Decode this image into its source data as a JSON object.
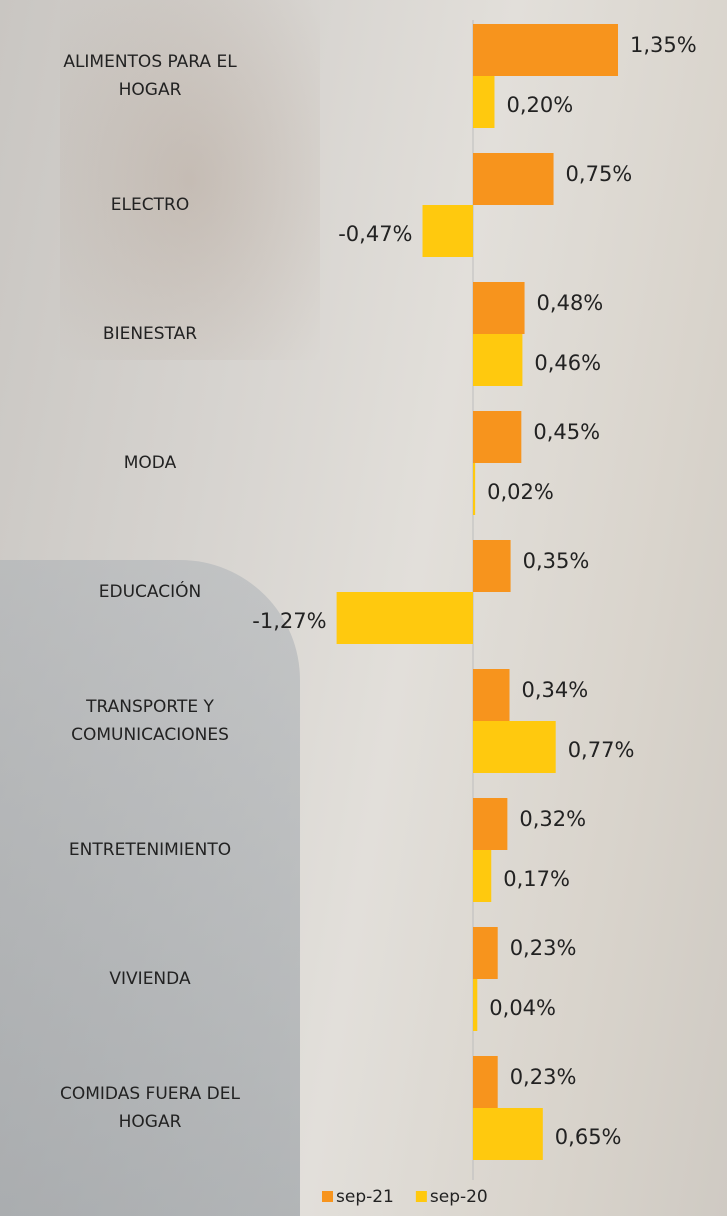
{
  "chart_data": {
    "type": "bar",
    "orientation": "horizontal",
    "categories": [
      "ALIMENTOS PARA EL HOGAR",
      "ELECTRO",
      "BIENESTAR",
      "MODA",
      "EDUCACIÓN",
      "TRANSPORTE Y COMUNICACIONES",
      "ENTRETENIMIENTO",
      "VIVIENDA",
      "COMIDAS FUERA DEL HOGAR"
    ],
    "series": [
      {
        "name": "sep-21",
        "color": "#f7941d",
        "values": [
          1.35,
          0.75,
          0.48,
          0.45,
          0.35,
          0.34,
          0.32,
          0.23,
          0.23
        ],
        "value_labels": [
          "1,35%",
          "0,75%",
          "0,48%",
          "0,45%",
          "0,35%",
          "0,34%",
          "0,32%",
          "0,23%",
          "0,23%"
        ]
      },
      {
        "name": "sep-20",
        "color": "#ffc90e",
        "values": [
          0.2,
          -0.47,
          0.46,
          0.02,
          -1.27,
          0.77,
          0.17,
          0.04,
          0.65
        ],
        "value_labels": [
          "0,20%",
          "-0,47%",
          "0,46%",
          "0,02%",
          "-1,27%",
          "0,77%",
          "0,17%",
          "0,04%",
          "0,65%"
        ]
      }
    ],
    "xlim": [
      -1.5,
      1.5
    ],
    "legend": "bottom"
  }
}
